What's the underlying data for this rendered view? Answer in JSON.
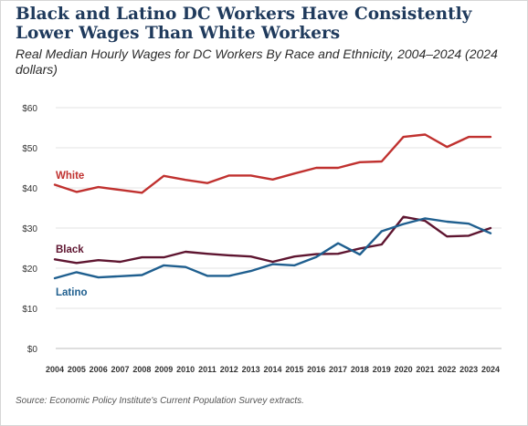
{
  "title": "Black and Latino DC Workers Have Consistently Lower Wages Than White Workers",
  "subtitle": "Real Median Hourly Wages for DC Workers By Race and Ethnicity, 2004–2024 (2024 dollars)",
  "source": "Source: Economic Policy Institute's Current Population Survey extracts.",
  "chart_data": {
    "type": "line",
    "x": [
      2004,
      2005,
      2006,
      2007,
      2008,
      2009,
      2010,
      2011,
      2012,
      2013,
      2014,
      2015,
      2016,
      2017,
      2018,
      2019,
      2020,
      2021,
      2022,
      2023,
      2024
    ],
    "x_tick_labels": [
      "2004",
      "2005",
      "2006",
      "2007",
      "2008",
      "2009",
      "2010",
      "2011",
      "2012",
      "2013",
      "2014",
      "2015",
      "2016",
      "2017",
      "2018",
      "2019",
      "2020",
      "2021",
      "2022",
      "2023",
      "2024"
    ],
    "y_ticks": [
      0,
      10,
      20,
      30,
      40,
      50,
      60
    ],
    "y_tick_labels": [
      "$0",
      "$10",
      "$20",
      "$30",
      "$40",
      "$50",
      "$60"
    ],
    "ylim": [
      0,
      60
    ],
    "grid": "horizontal",
    "series": [
      {
        "name": "White",
        "color": "#c0312f",
        "values": [
          40.8,
          39.0,
          40.2,
          39.5,
          38.8,
          43.0,
          42.0,
          41.2,
          43.1,
          43.1,
          42.1,
          43.6,
          45.0,
          45.0,
          46.4,
          46.6,
          52.7,
          53.3,
          50.2,
          52.7,
          52.7
        ]
      },
      {
        "name": "Black",
        "color": "#5e1530",
        "values": [
          22.2,
          21.3,
          22.0,
          21.6,
          22.7,
          22.7,
          24.1,
          23.6,
          23.2,
          22.9,
          21.6,
          22.9,
          23.5,
          23.6,
          24.9,
          25.9,
          32.8,
          31.8,
          27.9,
          28.1,
          30.0
        ]
      },
      {
        "name": "Latino",
        "color": "#1f5f8f",
        "values": [
          17.5,
          19.0,
          17.7,
          18.0,
          18.3,
          20.7,
          20.3,
          18.1,
          18.1,
          19.3,
          21.0,
          20.7,
          22.8,
          26.2,
          23.4,
          29.2,
          31.0,
          32.4,
          31.6,
          31.1,
          28.7
        ]
      }
    ]
  }
}
